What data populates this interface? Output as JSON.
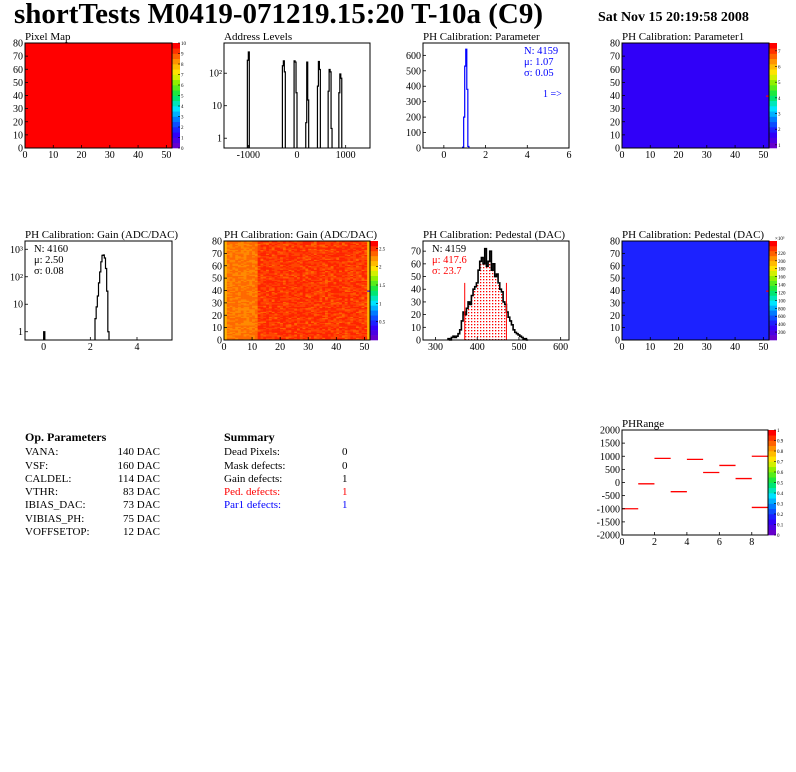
{
  "header": {
    "title": "shortTests M0419-071219.15:20 T-10a (C9)",
    "date": "Sat Nov 15 20:19:58 2008"
  },
  "op_parameters": {
    "title": "Op. Parameters",
    "rows": [
      {
        "name": "VANA:",
        "value": "140 DAC"
      },
      {
        "name": "VSF:",
        "value": "160 DAC"
      },
      {
        "name": "CALDEL:",
        "value": "114 DAC"
      },
      {
        "name": "VTHR:",
        "value": "83 DAC"
      },
      {
        "name": "IBIAS_DAC:",
        "value": "73 DAC"
      },
      {
        "name": "VIBIAS_PH:",
        "value": "75 DAC"
      },
      {
        "name": "VOFFSETOP:",
        "value": "12 DAC"
      }
    ]
  },
  "summary": {
    "title": "Summary",
    "rows": [
      {
        "name": "Dead Pixels:",
        "value": "0",
        "color": "#000000"
      },
      {
        "name": "Mask defects:",
        "value": "0",
        "color": "#000000"
      },
      {
        "name": "Gain defects:",
        "value": "1",
        "color": "#000000"
      },
      {
        "name": "Ped. defects:",
        "value": "1",
        "color": "#ff0000"
      },
      {
        "name": "Par1 defects:",
        "value": "1",
        "color": "#0000ff"
      }
    ]
  },
  "chart_data": [
    {
      "type": "heatmap",
      "title": "Pixel Map",
      "xlim": [
        0,
        52
      ],
      "ylim": [
        0,
        80
      ],
      "xticks": [
        "0",
        "10",
        "20",
        "30",
        "40",
        "50"
      ],
      "xtick_values": [
        0,
        10,
        20,
        30,
        40,
        50
      ],
      "yticks": [
        "0",
        "10",
        "20",
        "30",
        "40",
        "50",
        "60",
        "70",
        "80"
      ],
      "ytick_values": [
        0,
        10,
        20,
        30,
        40,
        50,
        60,
        70,
        80
      ],
      "zlim": [
        0,
        10
      ],
      "fill_value": 10,
      "hot_pixels": [],
      "palette_ticks": [
        "0",
        "1",
        "2",
        "3",
        "4",
        "5",
        "6",
        "7",
        "8",
        "9",
        "10"
      ],
      "palette_tick_values": [
        0,
        1,
        2,
        3,
        4,
        5,
        6,
        7,
        8,
        9,
        10
      ]
    },
    {
      "type": "bar",
      "title": "Address Levels",
      "xlim": [
        -1500,
        1500
      ],
      "ylim": [
        0.5,
        850
      ],
      "log_y": true,
      "xticks": [
        "-1000",
        "0",
        "1000"
      ],
      "xtick_values": [
        -1000,
        0,
        1000
      ],
      "yticks": [
        "1",
        "10",
        "10²"
      ],
      "ytick_values": [
        1,
        10,
        100
      ],
      "bin_width": 20,
      "color": "#000000",
      "bins": [
        [
          -1020,
          250
        ],
        [
          -1000,
          450
        ],
        [
          -300,
          170
        ],
        [
          -280,
          240
        ],
        [
          -260,
          110
        ],
        [
          -60,
          240
        ],
        [
          -40,
          220
        ],
        [
          -20,
          25
        ],
        [
          180,
          3
        ],
        [
          200,
          220
        ],
        [
          220,
          15
        ],
        [
          420,
          40
        ],
        [
          440,
          230
        ],
        [
          460,
          130
        ],
        [
          640,
          28
        ],
        [
          660,
          130
        ],
        [
          680,
          110
        ],
        [
          700,
          2
        ],
        [
          860,
          25
        ],
        [
          880,
          95
        ],
        [
          900,
          70
        ]
      ]
    },
    {
      "type": "bar",
      "title": "PH Calibration: Parameter",
      "xlim": [
        -1,
        6
      ],
      "ylim": [
        0,
        680
      ],
      "log_y": false,
      "xticks": [
        "0",
        "2",
        "4",
        "6"
      ],
      "xtick_values": [
        0,
        2,
        4,
        6
      ],
      "yticks": [
        "0",
        "100",
        "200",
        "300",
        "400",
        "500",
        "600"
      ],
      "ytick_values": [
        0,
        100,
        200,
        300,
        400,
        500,
        600
      ],
      "bin_width": 0.05,
      "color": "#0000ff",
      "bins": [
        [
          0.9,
          5
        ],
        [
          0.95,
          200
        ],
        [
          1.0,
          530
        ],
        [
          1.05,
          640
        ],
        [
          1.1,
          380
        ],
        [
          1.15,
          10
        ]
      ],
      "stats": [
        {
          "text": "N: 4159",
          "color": "#0000ff"
        },
        {
          "text": "μ: 1.07",
          "color": "#0000ff"
        },
        {
          "text": "σ: 0.05",
          "color": "#0000ff"
        }
      ],
      "annotation": "1 =>"
    },
    {
      "type": "heatmap",
      "title": "PH Calibration: Parameter1",
      "xlim": [
        0,
        52
      ],
      "ylim": [
        0,
        80
      ],
      "xticks": [
        "0",
        "10",
        "20",
        "30",
        "40",
        "50"
      ],
      "xtick_values": [
        0,
        10,
        20,
        30,
        40,
        50
      ],
      "yticks": [
        "0",
        "10",
        "20",
        "30",
        "40",
        "50",
        "60",
        "70",
        "80"
      ],
      "ytick_values": [
        0,
        10,
        20,
        30,
        40,
        50,
        60,
        70,
        80
      ],
      "zlim": [
        0.8,
        7.5
      ],
      "fill_value": 1.5,
      "hot_pixels": [
        [
          51,
          39,
          7.5
        ]
      ],
      "palette_ticks": [
        "1",
        "2",
        "3",
        "4",
        "5",
        "6",
        "7"
      ],
      "palette_tick_values": [
        1,
        2,
        3,
        4,
        5,
        6,
        7
      ]
    },
    {
      "type": "bar",
      "title": "PH Calibration: Gain (ADC/DAC)",
      "xlim": [
        -0.8,
        5.5
      ],
      "ylim": [
        0.5,
        2000
      ],
      "log_y": true,
      "xticks": [
        "0",
        "2",
        "4"
      ],
      "xtick_values": [
        0,
        2,
        4
      ],
      "yticks": [
        "1",
        "10",
        "10²",
        "10³"
      ],
      "ytick_values": [
        1,
        10,
        100,
        1000
      ],
      "bin_width": 0.05,
      "color": "#000000",
      "bins": [
        [
          0.0,
          1
        ],
        [
          2.2,
          3
        ],
        [
          2.25,
          8
        ],
        [
          2.3,
          20
        ],
        [
          2.35,
          60
        ],
        [
          2.4,
          150
        ],
        [
          2.45,
          350
        ],
        [
          2.5,
          600
        ],
        [
          2.55,
          620
        ],
        [
          2.6,
          480
        ],
        [
          2.65,
          200
        ],
        [
          2.7,
          30
        ],
        [
          2.75,
          1
        ]
      ],
      "stats": [
        {
          "text": "N: 4160",
          "color": "#000000"
        },
        {
          "text": "μ: 2.50",
          "color": "#000000"
        },
        {
          "text": "σ: 0.08",
          "color": "#000000"
        }
      ]
    },
    {
      "type": "heatmap",
      "title": "PH Calibration: Gain (ADC/DAC)",
      "xlim": [
        0,
        52
      ],
      "ylim": [
        0,
        80
      ],
      "xticks": [
        "0",
        "10",
        "20",
        "30",
        "40",
        "50"
      ],
      "xtick_values": [
        0,
        10,
        20,
        30,
        40,
        50
      ],
      "yticks": [
        "0",
        "10",
        "20",
        "30",
        "40",
        "50",
        "60",
        "70",
        "80"
      ],
      "ytick_values": [
        0,
        10,
        20,
        30,
        40,
        50,
        60,
        70,
        80
      ],
      "zlim": [
        0,
        2.7
      ],
      "fill_value": 2.45,
      "left_region_value": 2.3,
      "left_region_cols": 12,
      "hot_pixels": [
        [
          51,
          39,
          0.3
        ]
      ],
      "palette_ticks": [
        "0.5",
        "1",
        "1.5",
        "2",
        "2.5"
      ],
      "palette_tick_values": [
        0.5,
        1,
        1.5,
        2,
        2.5
      ]
    },
    {
      "type": "bar",
      "title": "PH Calibration: Pedestal (DAC)",
      "xlim": [
        270,
        620
      ],
      "ylim": [
        0,
        78
      ],
      "log_y": false,
      "xticks": [
        "300",
        "400",
        "500",
        "600"
      ],
      "xtick_values": [
        300,
        400,
        500,
        600
      ],
      "yticks": [
        "0",
        "10",
        "20",
        "30",
        "40",
        "50",
        "60",
        "70"
      ],
      "ytick_values": [
        0,
        10,
        20,
        30,
        40,
        50,
        60,
        70
      ],
      "bin_width": 4,
      "bin_start": 330,
      "color": "#000000",
      "counts": [
        1,
        0,
        2,
        3,
        2,
        3,
        5,
        8,
        15,
        22,
        20,
        25,
        30,
        28,
        35,
        40,
        42,
        45,
        55,
        62,
        65,
        60,
        72,
        58,
        62,
        70,
        55,
        60,
        50,
        52,
        45,
        40,
        38,
        30,
        28,
        22,
        18,
        15,
        12,
        8,
        6,
        5,
        4,
        3,
        2,
        1,
        1,
        0
      ],
      "cut_range": [
        370,
        470
      ],
      "cut_line_height": 45,
      "cut_color": "#ff0000",
      "stats": [
        {
          "text": "N: 4159",
          "color": "#000000"
        },
        {
          "text": "μ: 417.6",
          "color": "#ff0000"
        },
        {
          "text": "σ: 23.7",
          "color": "#ff0000"
        }
      ]
    },
    {
      "type": "heatmap",
      "title": "PH Calibration: Pedestal (DAC)",
      "xlim": [
        0,
        52
      ],
      "ylim": [
        0,
        80
      ],
      "xticks": [
        "0",
        "10",
        "20",
        "30",
        "40",
        "50"
      ],
      "xtick_values": [
        0,
        10,
        20,
        30,
        40,
        50
      ],
      "yticks": [
        "0",
        "10",
        "20",
        "30",
        "40",
        "50",
        "60",
        "70",
        "80"
      ],
      "ytick_values": [
        0,
        10,
        20,
        30,
        40,
        50,
        60,
        70,
        80
      ],
      "zlim": [
        0,
        2500
      ],
      "fill_value": 400,
      "hot_pixels": [
        [
          51,
          39,
          2500
        ]
      ],
      "palette_ticks": [
        "200",
        "400",
        "600",
        "800",
        "100",
        "120",
        "140",
        "160",
        "180",
        "200",
        "220"
      ],
      "palette_tick_values": [
        200,
        400,
        600,
        800,
        1000,
        1200,
        1400,
        1600,
        1800,
        2000,
        2200
      ],
      "palette_exponent": "×10³"
    },
    {
      "type": "heatmap",
      "title": "PHRange",
      "xlim": [
        0,
        9
      ],
      "ylim": [
        -2000,
        2000
      ],
      "xticks": [
        "0",
        "2",
        "4",
        "6",
        "8"
      ],
      "xtick_values": [
        0,
        2,
        4,
        6,
        8
      ],
      "yticks": [
        "2000",
        "1500",
        "1000",
        "500",
        "0",
        "-500",
        "-1000",
        "-1500",
        "-2000"
      ],
      "ytick_values": [
        -2000,
        -1500,
        -1000,
        -500,
        0,
        500,
        1000,
        1500,
        2000
      ],
      "zlim": [
        0,
        1
      ],
      "segments": [
        [
          0,
          -1000
        ],
        [
          1,
          -50
        ],
        [
          2,
          920
        ],
        [
          3,
          -350
        ],
        [
          4,
          880
        ],
        [
          5,
          380
        ],
        [
          6,
          650
        ],
        [
          7,
          150
        ],
        [
          8,
          1000
        ],
        [
          8,
          -950
        ]
      ],
      "segment_color": "#ff0000",
      "palette_ticks": [
        "0",
        "0.1",
        "0.2",
        "0.3",
        "0.4",
        "0.5",
        "0.6",
        "0.7",
        "0.8",
        "0.9",
        "1"
      ],
      "palette_tick_values": [
        0,
        0.1,
        0.2,
        0.3,
        0.4,
        0.5,
        0.6,
        0.7,
        0.8,
        0.9,
        1
      ]
    }
  ]
}
